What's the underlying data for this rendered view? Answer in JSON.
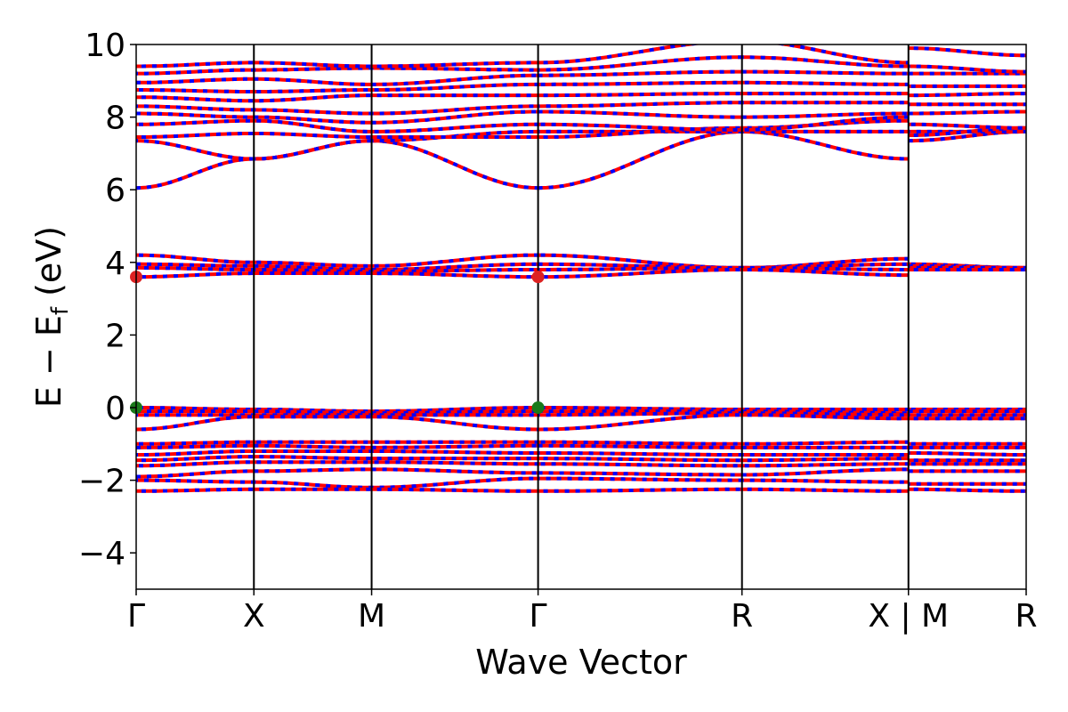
{
  "chart_data": {
    "type": "line",
    "xlabel": "Wave Vector",
    "ylabel": "E − E",
    "ylabel_sub": "f",
    "ylabel_unit": " (eV)",
    "ylim": [
      -5,
      10
    ],
    "yticks": [
      {
        "value": -4,
        "label": "−4"
      },
      {
        "value": -2,
        "label": "−2"
      },
      {
        "value": 0,
        "label": "0"
      },
      {
        "value": 2,
        "label": "2"
      },
      {
        "value": 4,
        "label": "4"
      },
      {
        "value": 6,
        "label": "6"
      },
      {
        "value": 8,
        "label": "8"
      },
      {
        "value": 10,
        "label": "10"
      }
    ],
    "kpoint_labels": [
      "Γ",
      "X",
      "M",
      "Γ",
      "R",
      "X | M",
      "R"
    ],
    "kpoint_positions": [
      0,
      0.5,
      1.0,
      1.707,
      2.573,
      3.28,
      3.78
    ],
    "spin_colors": {
      "up": "#ff0000",
      "down": "#0000ff"
    },
    "band_extrema": {
      "vbm": {
        "energy": 0.0,
        "kpoints": [
          "Γ",
          "Γ"
        ],
        "color": "#1a7a1a"
      },
      "cbm": {
        "energy": 3.6,
        "kpoints": [
          "Γ",
          "Γ"
        ],
        "color": "#dd2222"
      }
    },
    "bands": [
      {
        "name": "c1",
        "segments": [
          [
            6.05,
            6.85
          ],
          [
            6.85,
            7.35
          ],
          [
            7.35,
            6.05
          ],
          [
            6.05,
            7.6
          ],
          [
            7.6,
            6.85
          ],
          [
            7.35,
            7.6
          ]
        ]
      },
      {
        "name": "c2",
        "segments": [
          [
            7.35,
            6.85
          ],
          [
            6.85,
            7.35
          ],
          [
            7.35,
            7.6
          ],
          [
            7.6,
            7.6
          ],
          [
            7.6,
            7.6
          ],
          [
            7.6,
            7.6
          ]
        ]
      },
      {
        "name": "c3",
        "segments": [
          [
            7.45,
            7.55
          ],
          [
            7.55,
            7.45
          ],
          [
            7.45,
            7.45
          ],
          [
            7.45,
            7.7
          ],
          [
            7.7,
            7.9
          ],
          [
            7.5,
            7.7
          ]
        ]
      },
      {
        "name": "c4",
        "segments": [
          [
            7.8,
            7.9
          ],
          [
            7.9,
            7.6
          ],
          [
            7.6,
            7.8
          ],
          [
            7.8,
            7.65
          ],
          [
            7.65,
            8.0
          ],
          [
            7.8,
            7.7
          ]
        ]
      },
      {
        "name": "c5",
        "segments": [
          [
            8.1,
            8.0
          ],
          [
            8.0,
            7.85
          ],
          [
            7.85,
            8.15
          ],
          [
            8.15,
            8.0
          ],
          [
            8.0,
            8.1
          ],
          [
            8.1,
            8.15
          ]
        ]
      },
      {
        "name": "c6",
        "segments": [
          [
            8.3,
            8.2
          ],
          [
            8.2,
            8.1
          ],
          [
            8.1,
            8.3
          ],
          [
            8.3,
            8.4
          ],
          [
            8.4,
            8.4
          ],
          [
            8.35,
            8.35
          ]
        ]
      },
      {
        "name": "c7",
        "segments": [
          [
            8.55,
            8.45
          ],
          [
            8.45,
            8.6
          ],
          [
            8.6,
            8.6
          ],
          [
            8.6,
            8.65
          ],
          [
            8.65,
            8.65
          ],
          [
            8.6,
            8.65
          ]
        ]
      },
      {
        "name": "c8",
        "segments": [
          [
            8.75,
            8.7
          ],
          [
            8.7,
            8.75
          ],
          [
            8.75,
            8.9
          ],
          [
            8.9,
            8.95
          ],
          [
            8.95,
            8.9
          ],
          [
            8.85,
            8.85
          ]
        ]
      },
      {
        "name": "c9",
        "segments": [
          [
            8.95,
            9.05
          ],
          [
            9.05,
            8.9
          ],
          [
            8.9,
            9.15
          ],
          [
            9.15,
            9.25
          ],
          [
            9.25,
            9.2
          ],
          [
            9.2,
            9.2
          ]
        ]
      },
      {
        "name": "c10",
        "segments": [
          [
            9.2,
            9.3
          ],
          [
            9.3,
            9.35
          ],
          [
            9.35,
            9.3
          ],
          [
            9.3,
            9.65
          ],
          [
            9.65,
            9.4
          ],
          [
            9.4,
            9.25
          ]
        ]
      },
      {
        "name": "c11",
        "segments": [
          [
            9.4,
            9.5
          ],
          [
            9.5,
            9.4
          ],
          [
            9.4,
            9.5
          ],
          [
            9.5,
            10.1
          ],
          [
            10.1,
            9.5
          ],
          [
            9.9,
            9.7
          ]
        ]
      },
      {
        "name": "d1",
        "segments": [
          [
            4.2,
            4.0
          ],
          [
            4.0,
            3.9
          ],
          [
            3.9,
            4.2
          ],
          [
            4.2,
            3.85
          ],
          [
            3.85,
            4.1
          ],
          [
            3.95,
            3.85
          ]
        ]
      },
      {
        "name": "d2",
        "segments": [
          [
            3.95,
            3.9
          ],
          [
            3.9,
            3.8
          ],
          [
            3.8,
            3.95
          ],
          [
            3.95,
            3.85
          ],
          [
            3.85,
            3.95
          ],
          [
            3.9,
            3.85
          ]
        ]
      },
      {
        "name": "d3",
        "segments": [
          [
            3.85,
            3.8
          ],
          [
            3.8,
            3.75
          ],
          [
            3.75,
            3.8
          ],
          [
            3.8,
            3.85
          ],
          [
            3.85,
            3.8
          ],
          [
            3.85,
            3.85
          ]
        ]
      },
      {
        "name": "d4",
        "segments": [
          [
            3.6,
            3.7
          ],
          [
            3.7,
            3.7
          ],
          [
            3.7,
            3.6
          ],
          [
            3.6,
            3.8
          ],
          [
            3.8,
            3.65
          ],
          [
            3.8,
            3.8
          ]
        ]
      },
      {
        "name": "v1",
        "segments": [
          [
            0.0,
            -0.05
          ],
          [
            -0.05,
            -0.1
          ],
          [
            -0.1,
            0.0
          ],
          [
            0.0,
            -0.05
          ],
          [
            -0.05,
            -0.05
          ],
          [
            -0.05,
            -0.05
          ]
        ]
      },
      {
        "name": "v2",
        "segments": [
          [
            -0.1,
            -0.1
          ],
          [
            -0.1,
            -0.15
          ],
          [
            -0.15,
            -0.1
          ],
          [
            -0.1,
            -0.1
          ],
          [
            -0.1,
            -0.15
          ],
          [
            -0.1,
            -0.1
          ]
        ]
      },
      {
        "name": "v3",
        "segments": [
          [
            -0.2,
            -0.2
          ],
          [
            -0.2,
            -0.2
          ],
          [
            -0.2,
            -0.2
          ],
          [
            -0.2,
            -0.15
          ],
          [
            -0.15,
            -0.2
          ],
          [
            -0.2,
            -0.2
          ]
        ]
      },
      {
        "name": "v4",
        "segments": [
          [
            -0.6,
            -0.25
          ],
          [
            -0.25,
            -0.25
          ],
          [
            -0.25,
            -0.6
          ],
          [
            -0.6,
            -0.2
          ],
          [
            -0.2,
            -0.3
          ],
          [
            -0.3,
            -0.3
          ]
        ]
      },
      {
        "name": "v5",
        "segments": [
          [
            -1.0,
            -0.95
          ],
          [
            -0.95,
            -0.95
          ],
          [
            -0.95,
            -0.95
          ],
          [
            -0.95,
            -1.0
          ],
          [
            -1.0,
            -0.95
          ],
          [
            -1.0,
            -1.0
          ]
        ]
      },
      {
        "name": "v6",
        "segments": [
          [
            -1.1,
            -1.05
          ],
          [
            -1.05,
            -1.1
          ],
          [
            -1.1,
            -1.05
          ],
          [
            -1.05,
            -1.1
          ],
          [
            -1.1,
            -1.1
          ],
          [
            -1.1,
            -1.1
          ]
        ]
      },
      {
        "name": "v7",
        "segments": [
          [
            -1.3,
            -1.2
          ],
          [
            -1.2,
            -1.2
          ],
          [
            -1.2,
            -1.25
          ],
          [
            -1.25,
            -1.3
          ],
          [
            -1.3,
            -1.3
          ],
          [
            -1.25,
            -1.3
          ]
        ]
      },
      {
        "name": "v8",
        "segments": [
          [
            -1.45,
            -1.35
          ],
          [
            -1.35,
            -1.4
          ],
          [
            -1.4,
            -1.4
          ],
          [
            -1.4,
            -1.45
          ],
          [
            -1.45,
            -1.4
          ],
          [
            -1.45,
            -1.45
          ]
        ]
      },
      {
        "name": "v9",
        "segments": [
          [
            -1.6,
            -1.5
          ],
          [
            -1.5,
            -1.5
          ],
          [
            -1.5,
            -1.55
          ],
          [
            -1.55,
            -1.6
          ],
          [
            -1.6,
            -1.55
          ],
          [
            -1.55,
            -1.55
          ]
        ]
      },
      {
        "name": "v10",
        "segments": [
          [
            -1.9,
            -1.75
          ],
          [
            -1.75,
            -1.7
          ],
          [
            -1.7,
            -1.8
          ],
          [
            -1.8,
            -1.85
          ],
          [
            -1.85,
            -1.7
          ],
          [
            -1.75,
            -1.75
          ]
        ]
      },
      {
        "name": "v11",
        "segments": [
          [
            -2.0,
            -2.05
          ],
          [
            -2.05,
            -2.2
          ],
          [
            -2.2,
            -1.95
          ],
          [
            -1.95,
            -2.0
          ],
          [
            -2.0,
            -2.05
          ],
          [
            -2.1,
            -2.1
          ]
        ]
      },
      {
        "name": "v12",
        "segments": [
          [
            -2.3,
            -2.25
          ],
          [
            -2.25,
            -2.25
          ],
          [
            -2.25,
            -2.3
          ],
          [
            -2.3,
            -2.25
          ],
          [
            -2.25,
            -2.3
          ],
          [
            -2.25,
            -2.3
          ]
        ]
      }
    ]
  }
}
